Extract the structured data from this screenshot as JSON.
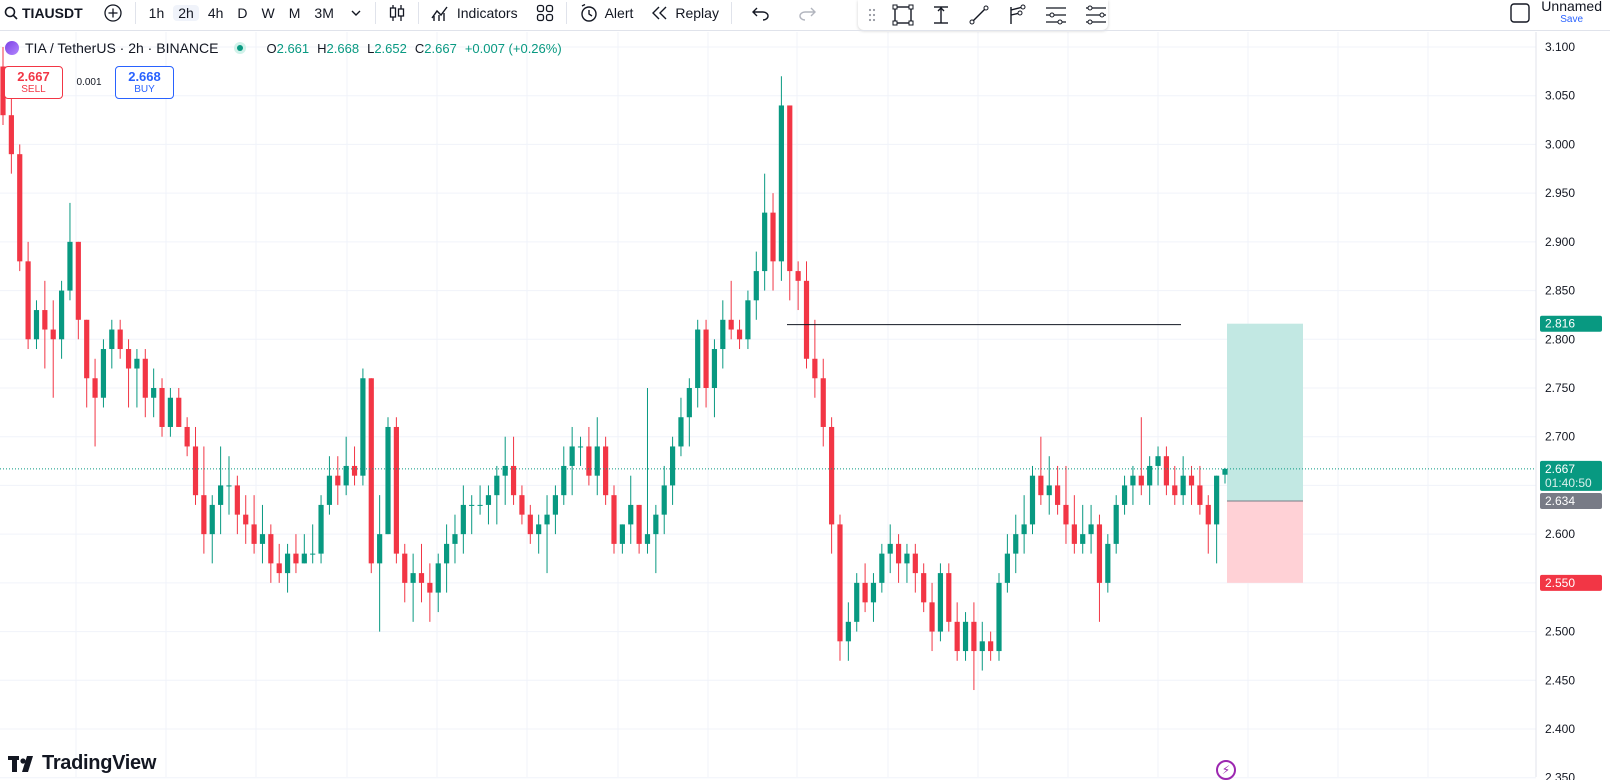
{
  "toolbar": {
    "symbol": "TIAUSDT",
    "intervals": [
      "1h",
      "2h",
      "4h",
      "D",
      "W",
      "M",
      "3M"
    ],
    "active_interval": "2h",
    "indicators_label": "Indicators",
    "alert_label": "Alert",
    "replay_label": "Replay",
    "layout_name": "Unnamed",
    "save_label": "Save"
  },
  "legend": {
    "title": "TIA / TetherUS · 2h · BINANCE",
    "o_key": "O",
    "o_val": "2.661",
    "h_key": "H",
    "h_val": "2.668",
    "l_key": "L",
    "l_val": "2.652",
    "c_key": "C",
    "c_val": "2.667",
    "change": "+0.007 (+0.26%)"
  },
  "trade": {
    "sell_price": "2.667",
    "sell_label": "SELL",
    "spread": "0.001",
    "buy_price": "2.668",
    "buy_label": "BUY"
  },
  "brand": {
    "name": "TradingView"
  },
  "chart_data": {
    "type": "candlestick",
    "symbol": "TIA / TetherUS",
    "interval": "2h",
    "exchange": "BINANCE",
    "y_ticks": [
      "3.100",
      "3.050",
      "3.000",
      "2.950",
      "2.900",
      "2.850",
      "2.800",
      "2.750",
      "2.700",
      "2.650",
      "2.600",
      "2.550",
      "2.500",
      "2.450",
      "2.400",
      "2.350"
    ],
    "y_range": [
      2.35,
      3.1
    ],
    "last_price": "2.667",
    "countdown": "01:40:50",
    "price_tags": [
      {
        "value": "2.816",
        "color": "#089981"
      },
      {
        "value": "2.634",
        "color": "#787b86"
      },
      {
        "value": "2.550",
        "color": "#f23645"
      }
    ],
    "horizontal_line": {
      "value": 2.815
    },
    "position": {
      "entry": 2.634,
      "target": 2.816,
      "stop": 2.55
    },
    "colors": {
      "up": "#089981",
      "down": "#f23645",
      "target_zone": "#c2e8e3",
      "stop_zone": "#ffd1d6"
    },
    "candles": [
      [
        3.08,
        3.1,
        3.02,
        3.03
      ],
      [
        3.03,
        3.06,
        2.97,
        2.99
      ],
      [
        2.99,
        3.0,
        2.87,
        2.88
      ],
      [
        2.88,
        2.9,
        2.79,
        2.8
      ],
      [
        2.8,
        2.84,
        2.79,
        2.83
      ],
      [
        2.83,
        2.86,
        2.77,
        2.81
      ],
      [
        2.81,
        2.84,
        2.74,
        2.8
      ],
      [
        2.8,
        2.86,
        2.78,
        2.85
      ],
      [
        2.85,
        2.94,
        2.84,
        2.9
      ],
      [
        2.9,
        2.9,
        2.8,
        2.82
      ],
      [
        2.82,
        2.82,
        2.73,
        2.76
      ],
      [
        2.76,
        2.78,
        2.69,
        2.74
      ],
      [
        2.74,
        2.8,
        2.73,
        2.79
      ],
      [
        2.79,
        2.82,
        2.77,
        2.81
      ],
      [
        2.81,
        2.82,
        2.78,
        2.79
      ],
      [
        2.79,
        2.8,
        2.73,
        2.77
      ],
      [
        2.77,
        2.79,
        2.73,
        2.78
      ],
      [
        2.78,
        2.79,
        2.72,
        2.74
      ],
      [
        2.74,
        2.77,
        2.72,
        2.75
      ],
      [
        2.75,
        2.76,
        2.7,
        2.71
      ],
      [
        2.71,
        2.75,
        2.7,
        2.74
      ],
      [
        2.74,
        2.75,
        2.71,
        2.71
      ],
      [
        2.71,
        2.72,
        2.68,
        2.69
      ],
      [
        2.69,
        2.71,
        2.63,
        2.64
      ],
      [
        2.64,
        2.69,
        2.58,
        2.6
      ],
      [
        2.6,
        2.64,
        2.57,
        2.63
      ],
      [
        2.63,
        2.69,
        2.6,
        2.65
      ],
      [
        2.65,
        2.68,
        2.62,
        2.65
      ],
      [
        2.65,
        2.66,
        2.6,
        2.62
      ],
      [
        2.62,
        2.64,
        2.59,
        2.61
      ],
      [
        2.61,
        2.64,
        2.58,
        2.59
      ],
      [
        2.59,
        2.63,
        2.57,
        2.6
      ],
      [
        2.6,
        2.61,
        2.55,
        2.57
      ],
      [
        2.57,
        2.59,
        2.55,
        2.56
      ],
      [
        2.56,
        2.59,
        2.54,
        2.58
      ],
      [
        2.58,
        2.6,
        2.56,
        2.57
      ],
      [
        2.57,
        2.6,
        2.57,
        2.58
      ],
      [
        2.58,
        2.61,
        2.57,
        2.58
      ],
      [
        2.58,
        2.64,
        2.57,
        2.63
      ],
      [
        2.63,
        2.68,
        2.62,
        2.66
      ],
      [
        2.66,
        2.68,
        2.63,
        2.65
      ],
      [
        2.65,
        2.7,
        2.64,
        2.67
      ],
      [
        2.67,
        2.69,
        2.65,
        2.66
      ],
      [
        2.66,
        2.77,
        2.65,
        2.76
      ],
      [
        2.76,
        2.76,
        2.56,
        2.57
      ],
      [
        2.57,
        2.64,
        2.5,
        2.6
      ],
      [
        2.6,
        2.72,
        2.6,
        2.71
      ],
      [
        2.71,
        2.72,
        2.57,
        2.58
      ],
      [
        2.58,
        2.59,
        2.53,
        2.55
      ],
      [
        2.55,
        2.58,
        2.51,
        2.56
      ],
      [
        2.56,
        2.59,
        2.53,
        2.55
      ],
      [
        2.55,
        2.57,
        2.51,
        2.54
      ],
      [
        2.54,
        2.58,
        2.52,
        2.57
      ],
      [
        2.57,
        2.61,
        2.54,
        2.59
      ],
      [
        2.59,
        2.62,
        2.57,
        2.6
      ],
      [
        2.6,
        2.65,
        2.58,
        2.63
      ],
      [
        2.63,
        2.64,
        2.6,
        2.63
      ],
      [
        2.63,
        2.65,
        2.62,
        2.63
      ],
      [
        2.63,
        2.65,
        2.61,
        2.64
      ],
      [
        2.64,
        2.67,
        2.61,
        2.66
      ],
      [
        2.66,
        2.7,
        2.63,
        2.67
      ],
      [
        2.67,
        2.7,
        2.63,
        2.64
      ],
      [
        2.64,
        2.65,
        2.61,
        2.62
      ],
      [
        2.62,
        2.63,
        2.59,
        2.6
      ],
      [
        2.6,
        2.62,
        2.58,
        2.61
      ],
      [
        2.61,
        2.64,
        2.56,
        2.62
      ],
      [
        2.62,
        2.65,
        2.6,
        2.64
      ],
      [
        2.64,
        2.69,
        2.63,
        2.67
      ],
      [
        2.67,
        2.71,
        2.64,
        2.69
      ],
      [
        2.69,
        2.7,
        2.67,
        2.69
      ],
      [
        2.69,
        2.71,
        2.65,
        2.66
      ],
      [
        2.66,
        2.72,
        2.64,
        2.69
      ],
      [
        2.69,
        2.7,
        2.63,
        2.64
      ],
      [
        2.64,
        2.65,
        2.58,
        2.59
      ],
      [
        2.59,
        2.61,
        2.58,
        2.61
      ],
      [
        2.61,
        2.66,
        2.59,
        2.63
      ],
      [
        2.63,
        2.63,
        2.58,
        2.59
      ],
      [
        2.59,
        2.75,
        2.58,
        2.6
      ],
      [
        2.6,
        2.63,
        2.56,
        2.62
      ],
      [
        2.62,
        2.67,
        2.6,
        2.65
      ],
      [
        2.65,
        2.7,
        2.63,
        2.69
      ],
      [
        2.69,
        2.74,
        2.68,
        2.72
      ],
      [
        2.72,
        2.76,
        2.69,
        2.75
      ],
      [
        2.75,
        2.82,
        2.73,
        2.81
      ],
      [
        2.81,
        2.82,
        2.73,
        2.75
      ],
      [
        2.75,
        2.8,
        2.72,
        2.79
      ],
      [
        2.79,
        2.84,
        2.77,
        2.82
      ],
      [
        2.82,
        2.86,
        2.8,
        2.81
      ],
      [
        2.81,
        2.82,
        2.79,
        2.8
      ],
      [
        2.8,
        2.85,
        2.79,
        2.84
      ],
      [
        2.84,
        2.89,
        2.82,
        2.87
      ],
      [
        2.87,
        2.97,
        2.85,
        2.93
      ],
      [
        2.93,
        2.95,
        2.85,
        2.88
      ],
      [
        2.88,
        3.07,
        2.86,
        3.04
      ],
      [
        3.04,
        3.04,
        2.84,
        2.87
      ],
      [
        2.87,
        2.88,
        2.83,
        2.86
      ],
      [
        2.86,
        2.88,
        2.77,
        2.78
      ],
      [
        2.78,
        2.82,
        2.74,
        2.76
      ],
      [
        2.76,
        2.78,
        2.69,
        2.71
      ],
      [
        2.71,
        2.72,
        2.58,
        2.61
      ],
      [
        2.61,
        2.62,
        2.47,
        2.49
      ],
      [
        2.49,
        2.53,
        2.47,
        2.51
      ],
      [
        2.51,
        2.56,
        2.5,
        2.55
      ],
      [
        2.55,
        2.57,
        2.52,
        2.53
      ],
      [
        2.53,
        2.56,
        2.51,
        2.55
      ],
      [
        2.55,
        2.59,
        2.54,
        2.58
      ],
      [
        2.58,
        2.61,
        2.56,
        2.59
      ],
      [
        2.59,
        2.6,
        2.55,
        2.57
      ],
      [
        2.57,
        2.59,
        2.55,
        2.58
      ],
      [
        2.58,
        2.59,
        2.54,
        2.56
      ],
      [
        2.56,
        2.57,
        2.52,
        2.53
      ],
      [
        2.53,
        2.55,
        2.48,
        2.5
      ],
      [
        2.5,
        2.57,
        2.49,
        2.56
      ],
      [
        2.56,
        2.57,
        2.5,
        2.51
      ],
      [
        2.51,
        2.53,
        2.47,
        2.48
      ],
      [
        2.48,
        2.52,
        2.47,
        2.51
      ],
      [
        2.51,
        2.53,
        2.44,
        2.48
      ],
      [
        2.48,
        2.51,
        2.46,
        2.49
      ],
      [
        2.49,
        2.5,
        2.47,
        2.48
      ],
      [
        2.48,
        2.56,
        2.47,
        2.55
      ],
      [
        2.55,
        2.6,
        2.54,
        2.58
      ],
      [
        2.58,
        2.62,
        2.56,
        2.6
      ],
      [
        2.6,
        2.64,
        2.58,
        2.61
      ],
      [
        2.61,
        2.67,
        2.6,
        2.66
      ],
      [
        2.66,
        2.7,
        2.63,
        2.64
      ],
      [
        2.64,
        2.68,
        2.62,
        2.65
      ],
      [
        2.65,
        2.67,
        2.62,
        2.63
      ],
      [
        2.63,
        2.67,
        2.59,
        2.61
      ],
      [
        2.61,
        2.64,
        2.58,
        2.59
      ],
      [
        2.59,
        2.63,
        2.58,
        2.6
      ],
      [
        2.6,
        2.63,
        2.58,
        2.61
      ],
      [
        2.61,
        2.62,
        2.51,
        2.55
      ],
      [
        2.55,
        2.6,
        2.54,
        2.59
      ],
      [
        2.59,
        2.64,
        2.58,
        2.63
      ],
      [
        2.63,
        2.66,
        2.62,
        2.65
      ],
      [
        2.65,
        2.67,
        2.63,
        2.66
      ],
      [
        2.66,
        2.72,
        2.64,
        2.65
      ],
      [
        2.65,
        2.68,
        2.63,
        2.67
      ],
      [
        2.67,
        2.69,
        2.65,
        2.68
      ],
      [
        2.68,
        2.69,
        2.64,
        2.65
      ],
      [
        2.65,
        2.67,
        2.63,
        2.64
      ],
      [
        2.64,
        2.68,
        2.63,
        2.66
      ],
      [
        2.66,
        2.67,
        2.63,
        2.65
      ],
      [
        2.65,
        2.67,
        2.62,
        2.63
      ],
      [
        2.63,
        2.64,
        2.58,
        2.61
      ],
      [
        2.61,
        2.66,
        2.57,
        2.66
      ],
      [
        2.661,
        2.668,
        2.652,
        2.667
      ]
    ]
  }
}
